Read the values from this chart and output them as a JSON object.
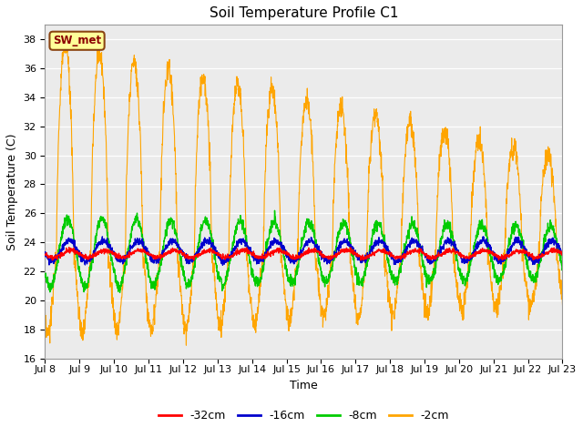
{
  "title": "Soil Temperature Profile C1",
  "xlabel": "Time",
  "ylabel": "Soil Temperature (C)",
  "ylim": [
    16,
    39
  ],
  "yticks": [
    16,
    18,
    20,
    22,
    24,
    26,
    28,
    30,
    32,
    34,
    36,
    38
  ],
  "plot_bg_color": "#ebebeb",
  "fig_bg_color": "#ffffff",
  "legend_label": "SW_met",
  "legend_bg": "#ffff99",
  "legend_border": "#8B4513",
  "line_colors": {
    "-32cm": "#ff0000",
    "-16cm": "#0000cd",
    "-8cm": "#00cc00",
    "-2cm": "#ffa500"
  },
  "n_days": 15,
  "points_per_day": 144,
  "start_day": 8
}
